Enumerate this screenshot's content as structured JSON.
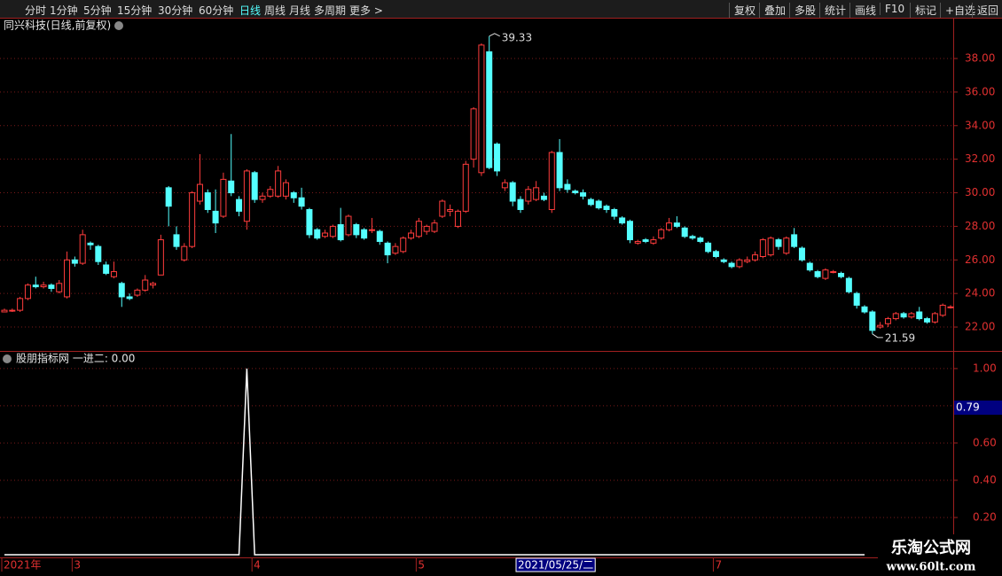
{
  "toolbar": {
    "left": [
      "分时",
      "1分钟",
      "5分钟",
      "15分钟",
      "30分钟",
      "60分钟",
      "日线",
      "周线",
      "月线",
      "多周期",
      "更多 >"
    ],
    "right": [
      "复权",
      "叠加",
      "多股",
      "统计",
      "画线",
      "F10",
      "标记",
      "+自选",
      "返回"
    ],
    "active": 6
  },
  "chart_data": [
    {
      "type": "candlestick",
      "title": "同兴科技(日线,前复权)",
      "up_color": "#ff3c3c",
      "down_color": "#54ffff",
      "ylim": [
        20.63,
        40.43
      ],
      "yticks": [
        {
          "value": 22,
          "label": "22.00"
        },
        {
          "value": 24,
          "label": "24.00"
        },
        {
          "value": 26,
          "label": "26.00"
        },
        {
          "value": 28,
          "label": "28.00"
        },
        {
          "value": 30,
          "label": "30.00"
        },
        {
          "value": 32,
          "label": "32.00"
        },
        {
          "value": 34,
          "label": "34.00"
        },
        {
          "value": 36,
          "label": "36.00"
        },
        {
          "value": 38,
          "label": "38.00"
        }
      ],
      "max_label": 39.33,
      "min_label": 21.59,
      "cursor_index": 66,
      "categories": [
        "2021年",
        null,
        null,
        null,
        null,
        null,
        null,
        null,
        null,
        "3",
        null,
        null,
        null,
        null,
        null,
        null,
        null,
        null,
        null,
        null,
        null,
        null,
        null,
        null,
        null,
        null,
        null,
        null,
        null,
        null,
        null,
        null,
        "4",
        null,
        null,
        null,
        null,
        null,
        null,
        null,
        null,
        null,
        null,
        null,
        null,
        null,
        null,
        null,
        null,
        null,
        null,
        null,
        null,
        "5",
        null,
        null,
        null,
        null,
        null,
        null,
        null,
        null,
        null,
        null,
        null,
        null,
        "2021/05/25/二",
        null,
        null,
        null,
        null,
        null,
        null,
        null,
        null,
        null,
        null,
        null,
        null,
        null,
        null,
        null,
        null,
        null,
        null,
        null,
        null,
        null,
        null,
        null,
        null,
        "7",
        null,
        null,
        null,
        null,
        null,
        null,
        null,
        null,
        null,
        null,
        null,
        null,
        null,
        null,
        null,
        null,
        null,
        null,
        null,
        null,
        null,
        null,
        null,
        null,
        null,
        null,
        null,
        null
      ],
      "ohlc": [
        [
          22.9,
          23.0,
          23.1,
          22.9
        ],
        [
          23.0,
          23.0,
          23.1,
          22.9
        ],
        [
          23.0,
          23.7,
          23.8,
          22.9
        ],
        [
          23.7,
          24.5,
          24.6,
          23.6
        ],
        [
          24.5,
          24.4,
          25.0,
          24.3
        ],
        [
          24.4,
          24.5,
          24.7,
          24.3
        ],
        [
          24.5,
          24.3,
          24.6,
          24.1
        ],
        [
          24.1,
          24.6,
          24.8,
          24.0
        ],
        [
          23.8,
          26.0,
          26.5,
          23.7
        ],
        [
          26.0,
          25.8,
          26.2,
          25.6
        ],
        [
          25.8,
          27.5,
          27.8,
          25.7
        ],
        [
          27.0,
          26.9,
          27.1,
          26.6
        ],
        [
          26.8,
          25.9,
          26.9,
          25.7
        ],
        [
          25.7,
          25.2,
          25.9,
          25.1
        ],
        [
          25.0,
          25.3,
          25.9,
          24.9
        ],
        [
          24.6,
          23.8,
          24.7,
          23.2
        ],
        [
          23.8,
          23.7,
          24.0,
          23.6
        ],
        [
          23.9,
          24.2,
          24.3,
          23.8
        ],
        [
          24.2,
          24.8,
          25.1,
          24.1
        ],
        [
          24.5,
          24.6,
          24.7,
          24.3
        ],
        [
          25.1,
          27.2,
          27.5,
          25.1
        ],
        [
          30.3,
          29.2,
          30.4,
          28.0
        ],
        [
          27.5,
          26.8,
          28.0,
          26.6
        ],
        [
          26.0,
          26.8,
          27.0,
          25.9
        ],
        [
          26.8,
          30.0,
          30.1,
          26.7
        ],
        [
          29.5,
          30.5,
          32.3,
          29.3
        ],
        [
          30.0,
          29.0,
          30.2,
          28.8
        ],
        [
          28.9,
          28.2,
          30.2,
          27.6
        ],
        [
          28.6,
          30.8,
          31.2,
          28.5
        ],
        [
          30.7,
          30.0,
          33.5,
          29.8
        ],
        [
          29.6,
          28.9,
          29.8,
          28.6
        ],
        [
          28.3,
          31.3,
          31.4,
          27.8
        ],
        [
          31.2,
          29.6,
          31.3,
          29.4
        ],
        [
          29.6,
          29.8,
          30.0,
          29.4
        ],
        [
          29.8,
          30.2,
          30.4,
          29.7
        ],
        [
          29.8,
          31.3,
          31.6,
          29.7
        ],
        [
          29.8,
          30.6,
          30.8,
          29.6
        ],
        [
          30.0,
          29.7,
          30.1,
          29.4
        ],
        [
          29.7,
          29.2,
          30.3,
          29.0
        ],
        [
          29.0,
          27.5,
          29.1,
          27.3
        ],
        [
          27.8,
          27.3,
          27.9,
          27.2
        ],
        [
          27.4,
          27.6,
          27.8,
          27.3
        ],
        [
          27.4,
          28.0,
          28.1,
          27.3
        ],
        [
          28.1,
          27.2,
          29.1,
          27.1
        ],
        [
          27.5,
          28.6,
          28.7,
          27.4
        ],
        [
          28.1,
          27.5,
          28.2,
          27.3
        ],
        [
          27.8,
          27.3,
          27.9,
          27.2
        ],
        [
          27.8,
          27.8,
          28.5,
          27.6
        ],
        [
          27.7,
          27.1,
          27.8,
          26.9
        ],
        [
          27.0,
          26.3,
          27.1,
          25.8
        ],
        [
          26.4,
          26.8,
          27.0,
          26.3
        ],
        [
          26.5,
          27.3,
          27.4,
          26.4
        ],
        [
          27.3,
          27.6,
          27.8,
          27.2
        ],
        [
          27.4,
          28.3,
          28.5,
          27.3
        ],
        [
          27.7,
          28.0,
          28.1,
          27.5
        ],
        [
          27.7,
          28.2,
          28.4,
          27.6
        ],
        [
          28.6,
          29.5,
          29.6,
          28.5
        ],
        [
          28.9,
          29.0,
          29.3,
          28.6
        ],
        [
          28.0,
          28.9,
          29.0,
          27.9
        ],
        [
          28.9,
          31.7,
          31.9,
          28.8
        ],
        [
          32.0,
          35.0,
          35.1,
          31.5
        ],
        [
          31.2,
          38.8,
          38.9,
          31.0
        ],
        [
          38.4,
          31.5,
          39.33,
          31.4
        ],
        [
          32.9,
          31.3,
          33.0,
          31.0
        ],
        [
          30.3,
          30.6,
          30.8,
          30.1
        ],
        [
          30.6,
          29.5,
          30.7,
          29.2
        ],
        [
          29.6,
          29.0,
          29.8,
          28.8
        ],
        [
          29.5,
          30.2,
          30.4,
          29.3
        ],
        [
          29.6,
          30.3,
          30.7,
          29.5
        ],
        [
          29.8,
          29.6,
          30.0,
          29.5
        ],
        [
          29.0,
          32.4,
          32.5,
          28.8
        ],
        [
          32.4,
          30.3,
          33.2,
          30.1
        ],
        [
          30.5,
          30.2,
          30.8,
          30.0
        ],
        [
          30.1,
          30.0,
          30.2,
          29.9
        ],
        [
          30.0,
          29.8,
          30.2,
          29.6
        ],
        [
          29.6,
          29.3,
          29.7,
          29.2
        ],
        [
          29.5,
          29.1,
          29.6,
          29.0
        ],
        [
          29.2,
          29.0,
          29.3,
          28.8
        ],
        [
          29.0,
          28.6,
          29.1,
          28.4
        ],
        [
          28.5,
          28.2,
          28.6,
          28.1
        ],
        [
          28.3,
          27.2,
          28.4,
          27.0
        ],
        [
          27.0,
          27.1,
          27.2,
          26.9
        ],
        [
          27.2,
          27.1,
          27.3,
          27.0
        ],
        [
          27.0,
          27.2,
          27.4,
          26.9
        ],
        [
          27.3,
          27.8,
          27.9,
          27.2
        ],
        [
          27.8,
          28.2,
          28.5,
          27.7
        ],
        [
          28.2,
          28.0,
          28.6,
          27.9
        ],
        [
          27.9,
          27.4,
          28.0,
          27.3
        ],
        [
          27.4,
          27.3,
          27.5,
          27.2
        ],
        [
          27.3,
          27.1,
          27.4,
          27.0
        ],
        [
          27.0,
          26.5,
          27.1,
          26.4
        ],
        [
          26.5,
          26.2,
          26.6,
          26.1
        ],
        [
          26.0,
          25.9,
          26.1,
          25.8
        ],
        [
          25.8,
          25.6,
          25.9,
          25.5
        ],
        [
          25.6,
          26.0,
          26.1,
          25.5
        ],
        [
          25.9,
          26.0,
          26.2,
          25.8
        ],
        [
          26.0,
          26.3,
          26.5,
          25.9
        ],
        [
          26.2,
          27.2,
          27.3,
          26.1
        ],
        [
          26.3,
          27.3,
          27.4,
          26.2
        ],
        [
          27.2,
          26.8,
          27.3,
          26.6
        ],
        [
          26.4,
          27.3,
          27.4,
          26.3
        ],
        [
          27.5,
          26.8,
          27.9,
          26.7
        ],
        [
          26.7,
          26.0,
          26.8,
          25.9
        ],
        [
          25.8,
          25.4,
          25.9,
          25.3
        ],
        [
          25.3,
          25.0,
          25.4,
          24.9
        ],
        [
          24.9,
          25.4,
          25.5,
          24.8
        ],
        [
          25.3,
          25.3,
          25.4,
          25.2
        ],
        [
          25.2,
          25.0,
          25.3,
          24.9
        ],
        [
          24.9,
          24.1,
          25.0,
          24.0
        ],
        [
          24.0,
          23.3,
          24.1,
          23.1
        ],
        [
          23.2,
          22.9,
          23.3,
          22.8
        ],
        [
          22.9,
          21.8,
          23.0,
          21.59
        ],
        [
          22.0,
          22.1,
          22.3,
          21.9
        ],
        [
          22.2,
          22.5,
          22.6,
          22.0
        ],
        [
          22.5,
          22.8,
          22.9,
          22.4
        ],
        [
          22.8,
          22.6,
          22.9,
          22.5
        ],
        [
          22.6,
          22.8,
          22.9,
          22.5
        ],
        [
          22.9,
          22.5,
          23.2,
          22.4
        ],
        [
          22.5,
          22.3,
          22.6,
          22.2
        ],
        [
          22.3,
          22.8,
          22.9,
          22.2
        ],
        [
          22.7,
          23.3,
          23.4,
          22.6
        ],
        [
          23.2,
          23.2,
          23.3,
          23.1
        ]
      ]
    },
    {
      "type": "line",
      "title": "股朋指标网 一进二: 0.00",
      "color": "#ffffff",
      "ylim": [
        0,
        1.09
      ],
      "yticks": [
        {
          "value": 1,
          "label": "1.00"
        },
        {
          "value": 0.8,
          "label": "0.80"
        },
        {
          "value": 0.6,
          "label": "0.60"
        },
        {
          "value": 0.4,
          "label": "0.40"
        },
        {
          "value": 0.2,
          "label": "0.20"
        }
      ],
      "cursor_y": 0.79,
      "values": [
        0,
        0,
        0,
        0,
        0,
        0,
        0,
        0,
        0,
        0,
        0,
        0,
        0,
        0,
        0,
        0,
        0,
        0,
        0,
        0,
        0,
        0,
        0,
        0,
        0,
        0,
        0,
        0,
        0,
        0,
        0,
        1,
        0,
        0,
        0,
        0,
        0,
        0,
        0,
        0,
        0,
        0,
        0,
        0,
        0,
        0,
        0,
        0,
        0,
        0,
        0,
        0,
        0,
        0,
        0,
        0,
        0,
        0,
        0,
        0,
        0,
        0,
        0,
        0,
        0,
        0,
        0,
        0,
        0,
        0,
        0,
        0,
        0,
        0,
        0,
        0,
        0,
        0,
        0,
        0,
        0,
        0,
        0,
        0,
        0,
        0,
        0,
        0,
        0,
        0,
        0,
        0,
        0,
        0,
        0,
        0,
        0,
        0,
        0,
        0,
        0,
        0,
        0,
        0,
        0,
        0,
        0,
        0,
        0,
        0,
        0,
        null,
        null,
        null,
        null,
        null,
        null,
        null,
        null,
        null,
        null,
        null
      ]
    }
  ],
  "watermark": {
    "name": "乐淘公式网",
    "url": "www.60lt.com"
  }
}
